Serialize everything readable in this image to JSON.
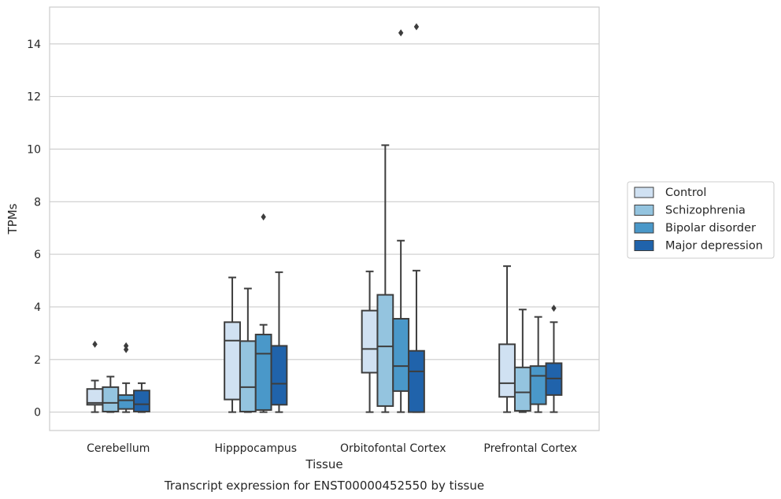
{
  "chart_data": {
    "type": "box",
    "title": "Transcript expression for ENST00000452550 by tissue",
    "xlabel": "Tissue",
    "ylabel": "TPMs",
    "ylim": [
      -0.7,
      15.4
    ],
    "y_ticks": [
      0,
      2,
      4,
      6,
      8,
      10,
      12,
      14
    ],
    "grid": "horizontal",
    "legend_position": "right",
    "categories": [
      "Cerebellum",
      "Hipppocampus",
      "Orbitofontal Cortex",
      "Prefrontal Cortex"
    ],
    "series": [
      {
        "name": "Control",
        "color": "#d0e1f2",
        "boxes": [
          {
            "whisker_low": 0.0,
            "q1": 0.28,
            "median": 0.35,
            "q3": 0.88,
            "whisker_high": 1.2,
            "outliers": [
              2.58
            ]
          },
          {
            "whisker_low": 0.0,
            "q1": 0.48,
            "median": 2.72,
            "q3": 3.42,
            "whisker_high": 5.12,
            "outliers": []
          },
          {
            "whisker_low": 0.0,
            "q1": 1.5,
            "median": 2.4,
            "q3": 3.86,
            "whisker_high": 5.35,
            "outliers": []
          },
          {
            "whisker_low": 0.0,
            "q1": 0.58,
            "median": 1.1,
            "q3": 2.58,
            "whisker_high": 5.55,
            "outliers": []
          }
        ]
      },
      {
        "name": "Schizophrenia",
        "color": "#94c4df",
        "boxes": [
          {
            "whisker_low": 0.0,
            "q1": 0.02,
            "median": 0.35,
            "q3": 0.95,
            "whisker_high": 1.35,
            "outliers": []
          },
          {
            "whisker_low": 0.0,
            "q1": 0.02,
            "median": 0.95,
            "q3": 2.7,
            "whisker_high": 4.7,
            "outliers": []
          },
          {
            "whisker_low": 0.0,
            "q1": 0.23,
            "median": 2.5,
            "q3": 4.46,
            "whisker_high": 10.15,
            "outliers": []
          },
          {
            "whisker_low": 0.0,
            "q1": 0.05,
            "median": 0.75,
            "q3": 1.7,
            "whisker_high": 3.9,
            "outliers": []
          }
        ]
      },
      {
        "name": "Bipolar disorder",
        "color": "#4a98c9",
        "boxes": [
          {
            "whisker_low": 0.0,
            "q1": 0.12,
            "median": 0.45,
            "q3": 0.65,
            "whisker_high": 1.1,
            "outliers": [
              2.38,
              2.52
            ]
          },
          {
            "whisker_low": 0.0,
            "q1": 0.08,
            "median": 2.22,
            "q3": 2.95,
            "whisker_high": 3.32,
            "outliers": [
              7.42
            ]
          },
          {
            "whisker_low": 0.0,
            "q1": 0.8,
            "median": 1.75,
            "q3": 3.55,
            "whisker_high": 6.52,
            "outliers": [
              14.42
            ]
          },
          {
            "whisker_low": 0.0,
            "q1": 0.3,
            "median": 1.38,
            "q3": 1.75,
            "whisker_high": 3.62,
            "outliers": []
          }
        ]
      },
      {
        "name": "Major depression",
        "color": "#2063ab",
        "boxes": [
          {
            "whisker_low": 0.0,
            "q1": 0.02,
            "median": 0.3,
            "q3": 0.82,
            "whisker_high": 1.1,
            "outliers": []
          },
          {
            "whisker_low": 0.0,
            "q1": 0.28,
            "median": 1.08,
            "q3": 2.52,
            "whisker_high": 5.32,
            "outliers": []
          },
          {
            "whisker_low": 0.0,
            "q1": 0.0,
            "median": 1.55,
            "q3": 2.33,
            "whisker_high": 5.38,
            "outliers": [
              14.65
            ]
          },
          {
            "whisker_low": 0.0,
            "q1": 0.65,
            "median": 1.28,
            "q3": 1.86,
            "whisker_high": 3.42,
            "outliers": [
              3.95
            ]
          }
        ]
      }
    ]
  }
}
